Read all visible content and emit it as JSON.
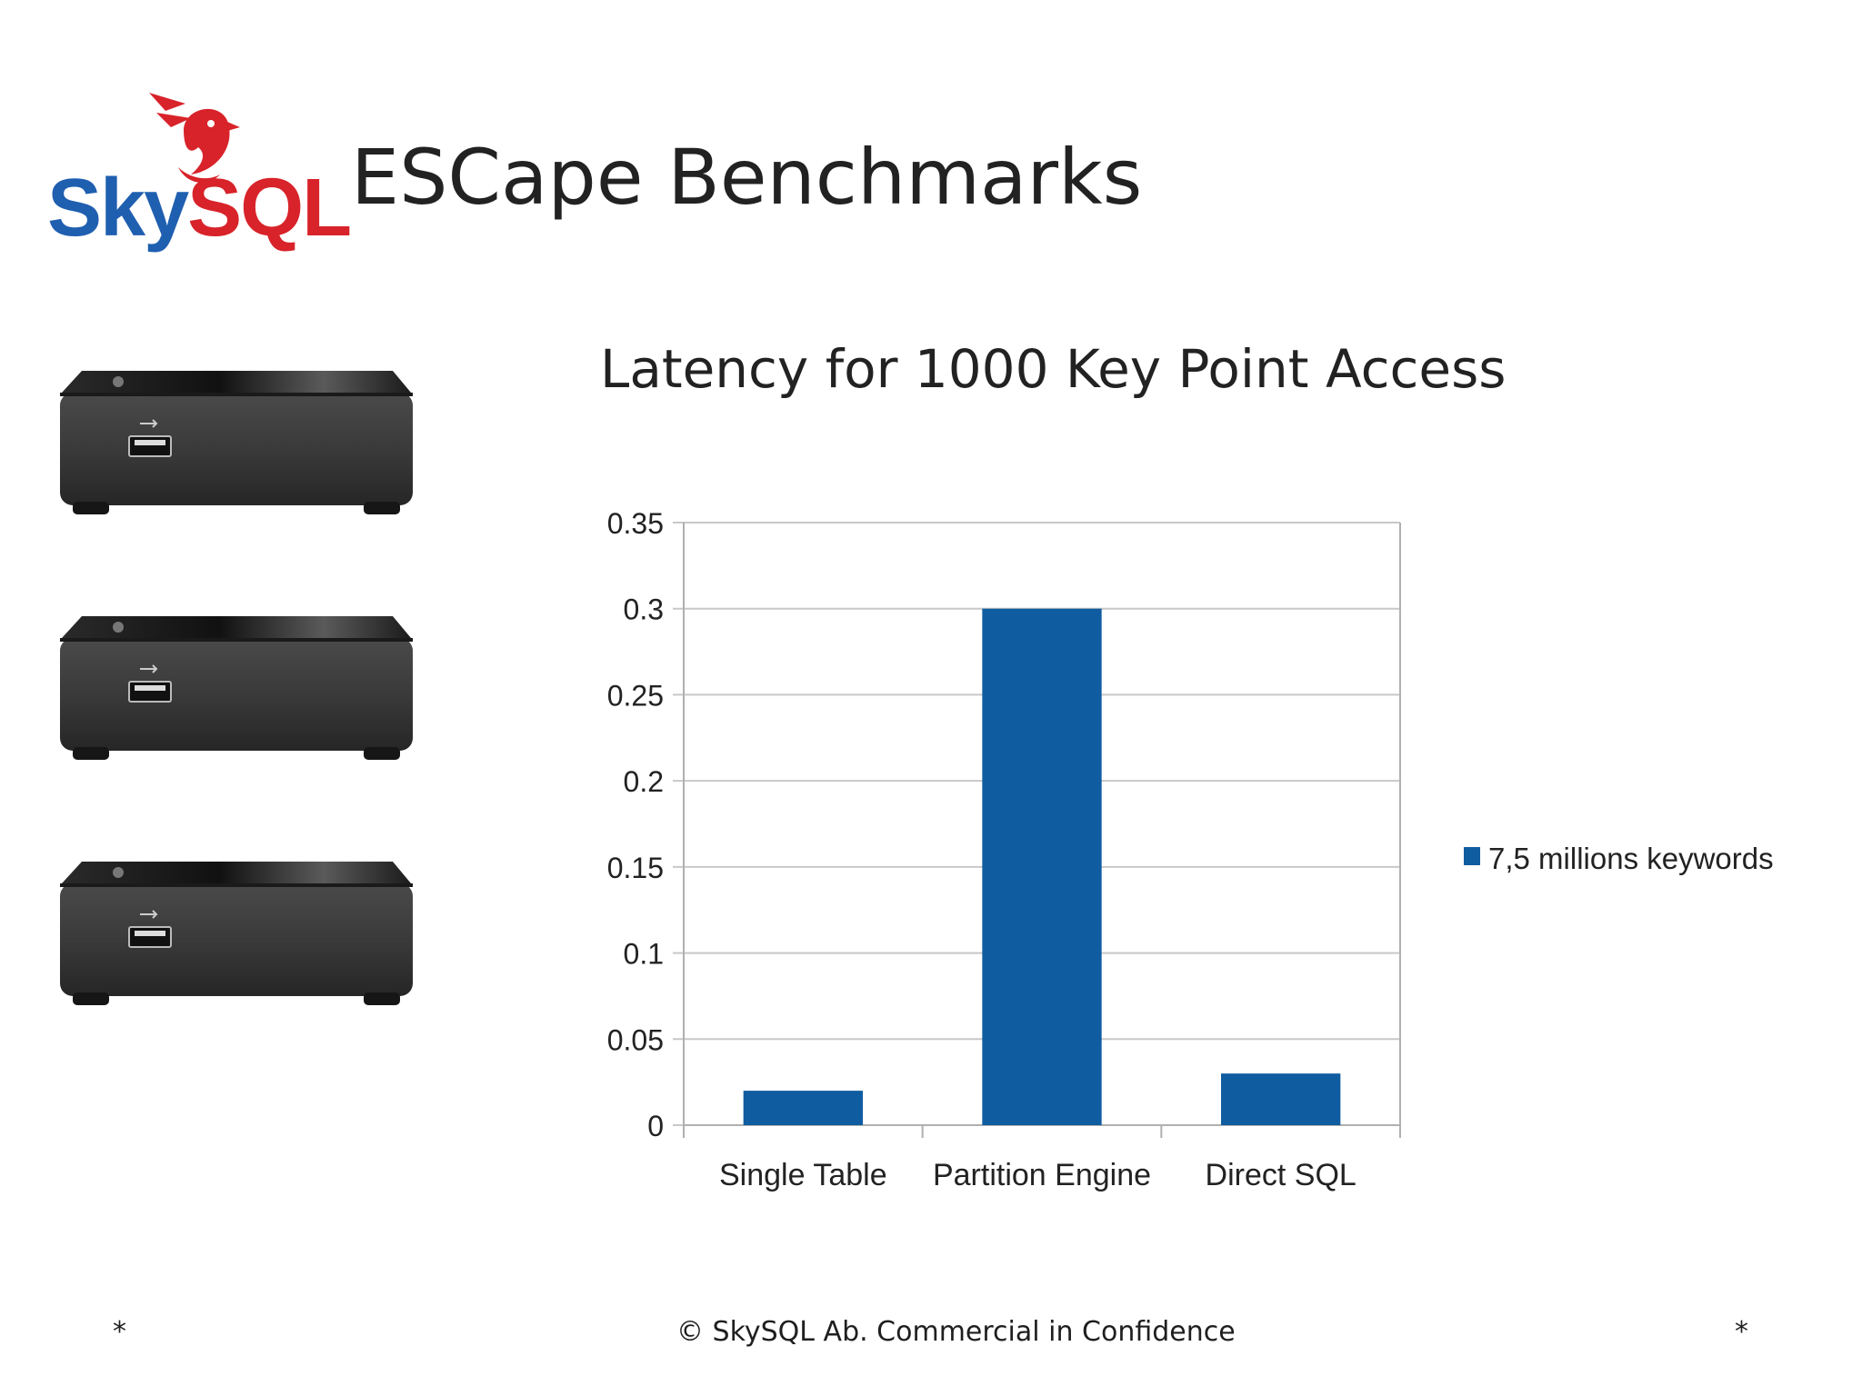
{
  "slide": {
    "title": "ESCape Benchmarks",
    "logo": {
      "sky": "Sky",
      "sql": "SQL",
      "icon": "bird-logo-icon",
      "sky_color": "#1f5fb0",
      "sql_color": "#d8232a"
    },
    "devices": [
      {
        "icon": "mini-pc-device-icon"
      },
      {
        "icon": "mini-pc-device-icon"
      },
      {
        "icon": "mini-pc-device-icon"
      }
    ],
    "footer": {
      "left": "*",
      "center": "© SkySQL Ab. Commercial in Confidence",
      "right": "*"
    }
  },
  "chart_data": {
    "type": "bar",
    "title": "Latency for 1000 Key Point Access",
    "xlabel": "",
    "ylabel": "",
    "categories": [
      "Single Table",
      "Partition Engine",
      "Direct SQL"
    ],
    "series": [
      {
        "name": "7,5 millions keywords",
        "values": [
          0.02,
          0.3,
          0.03
        ],
        "color": "#105ca0"
      }
    ],
    "ylim": [
      0,
      0.35
    ],
    "yticks": [
      "0",
      "0.05",
      "0.1",
      "0.15",
      "0.2",
      "0.25",
      "0.3",
      "0.35"
    ],
    "grid": true,
    "legend_position": "right"
  }
}
